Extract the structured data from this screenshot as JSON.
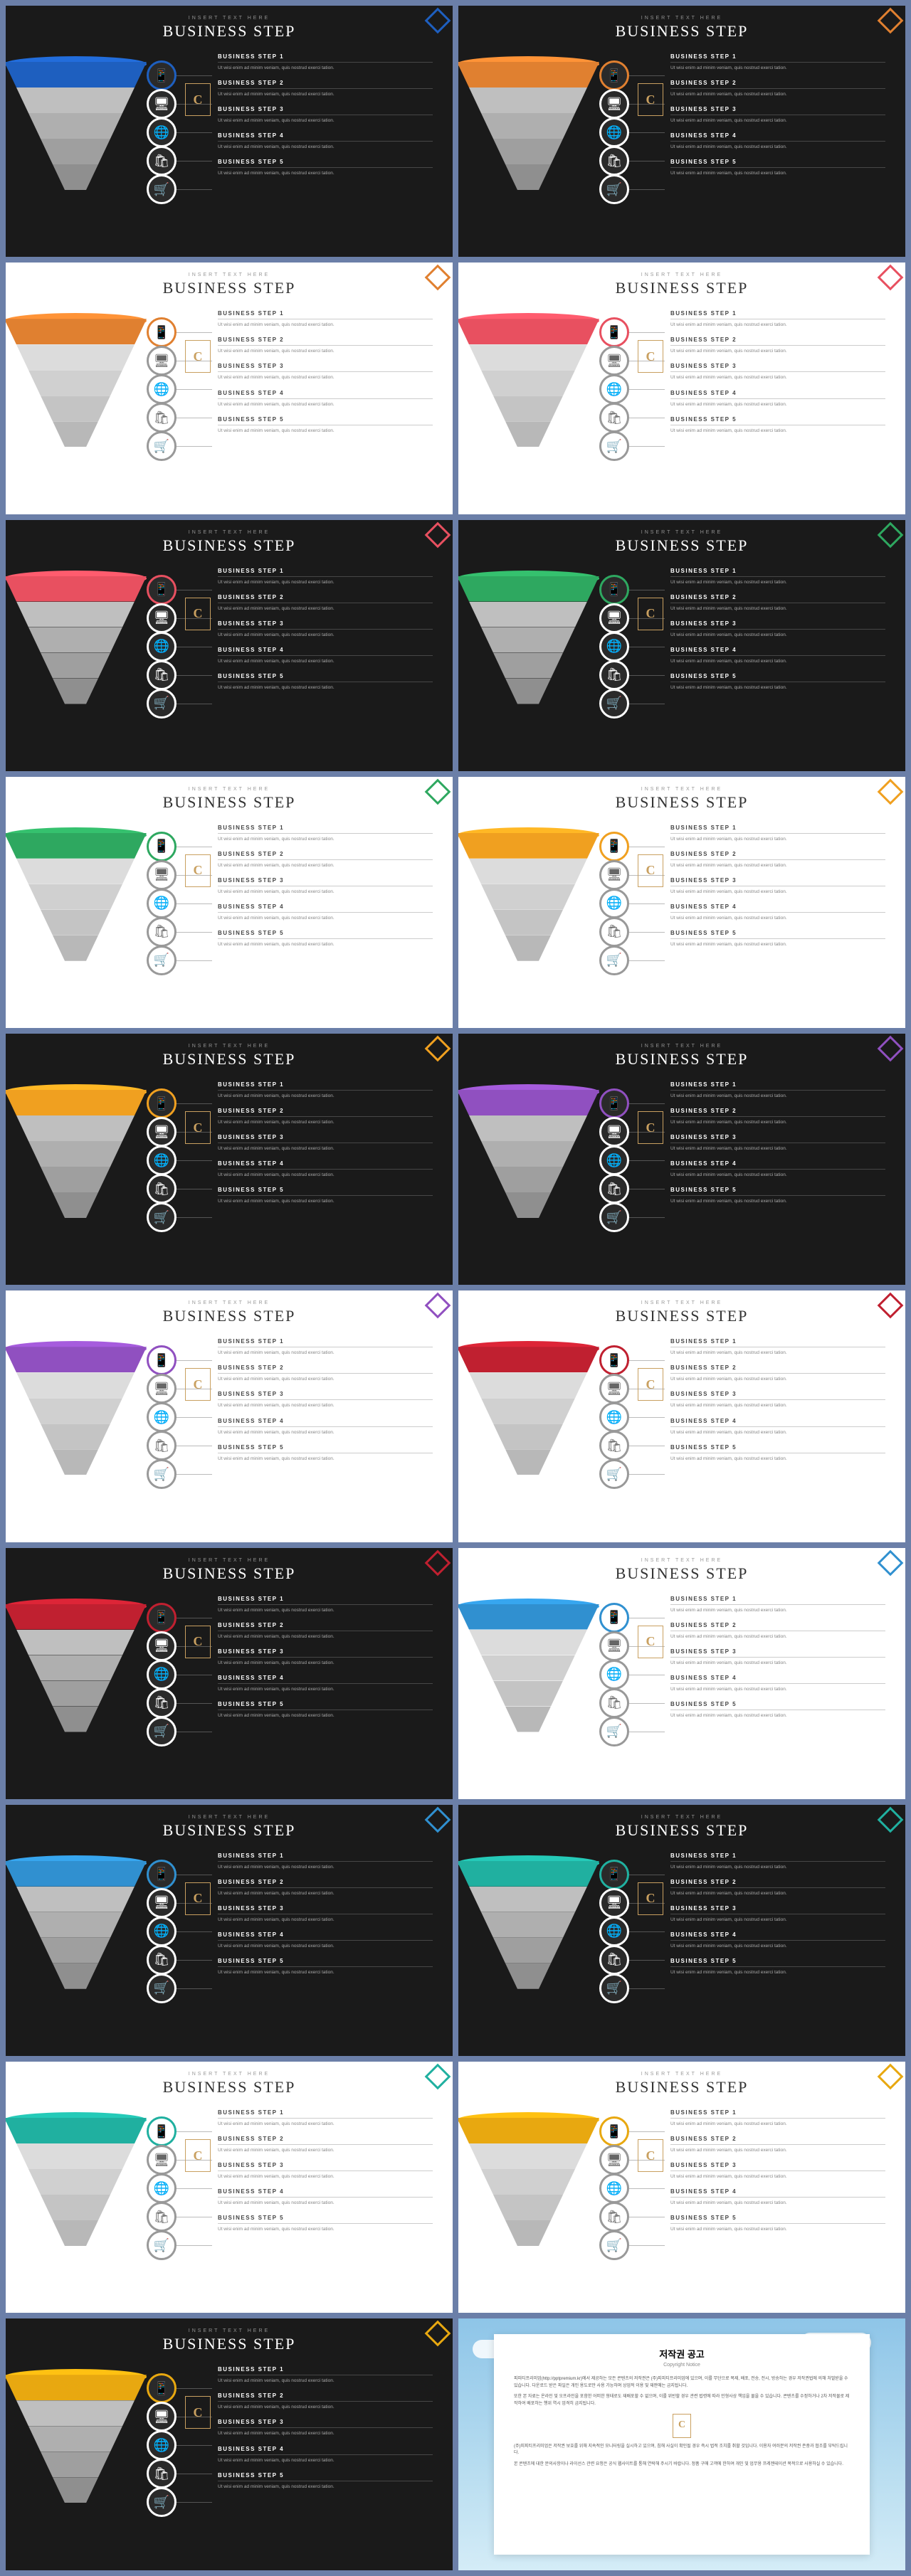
{
  "pretitle": "INSERT TEXT HERE",
  "title": "BUSINESS STEP",
  "step_label": "BUSINESS STEP",
  "step_desc": "Ut wisi enim ad minim veniam, quis nostrud exerci tation.",
  "logo_letter": "C",
  "icons": [
    "📱",
    "🖥",
    "🌐",
    "🛍",
    "🛒"
  ],
  "cone_grays": [
    "#cfcfcf",
    "#bfbfbf",
    "#afafaf",
    "#9f9f9f",
    "#8f8f8f"
  ],
  "cone_grays_light": [
    "#e8e8e8",
    "#dcdcdc",
    "#d0d0d0",
    "#c4c4c4",
    "#b8b8b8"
  ],
  "slides": [
    {
      "theme": "dark",
      "accent": "#1e5fbf"
    },
    {
      "theme": "dark",
      "accent": "#e08030"
    },
    {
      "theme": "light",
      "accent": "#e08030"
    },
    {
      "theme": "light",
      "accent": "#e85060"
    },
    {
      "theme": "dark",
      "accent": "#e85060"
    },
    {
      "theme": "dark",
      "accent": "#2ea860"
    },
    {
      "theme": "light",
      "accent": "#2ea860"
    },
    {
      "theme": "light",
      "accent": "#f0a020"
    },
    {
      "theme": "dark",
      "accent": "#f0a020"
    },
    {
      "theme": "dark",
      "accent": "#9050c0"
    },
    {
      "theme": "light",
      "accent": "#9050c0"
    },
    {
      "theme": "light",
      "accent": "#c02030"
    },
    {
      "theme": "dark",
      "accent": "#c02030"
    },
    {
      "theme": "light",
      "accent": "#3090d0"
    },
    {
      "theme": "dark",
      "accent": "#3090d0"
    },
    {
      "theme": "dark",
      "accent": "#20b0a0"
    },
    {
      "theme": "light",
      "accent": "#20b0a0"
    },
    {
      "theme": "light",
      "accent": "#e8a810"
    },
    {
      "theme": "dark",
      "accent": "#e8a810"
    }
  ],
  "copyright": {
    "title": "저작권 공고",
    "subtitle": "Copyright Notice",
    "paragraphs": [
      "피피티프리미엄(http://pptpremium.kr)에서 제공하는 모든 콘텐츠의 저작권은 (주)피피티프리미엄에 있으며, 이를 무단으로 복제, 배포, 전송, 전시, 방송하는 경우 저작권법에 의해 처벌받을 수 있습니다. 다운로드 받은 파일은 개인 용도로만 사용 가능하며 상업적 이용 및 재판매는 금지됩니다.",
      "또한 본 자료는 온라인 및 오프라인을 포함한 어떠한 형태로도 재배포할 수 없으며, 이를 위반할 경우 관련 법령에 따라 민형사상 책임을 물을 수 있습니다. 콘텐츠를 수정하거나 2차 저작물로 제작하여 배포하는 행위 역시 엄격히 금지됩니다.",
      "(주)피피티프리미엄은 저작권 보호를 위해 지속적인 모니터링을 실시하고 있으며, 침해 사실이 확인될 경우 즉시 법적 조치를 취할 것입니다. 이용자 여러분의 저작권 존중과 협조를 부탁드립니다.",
      "본 콘텐츠에 대한 문의사항이나 라이선스 관련 요청은 공식 웹사이트를 통해 연락해 주시기 바랍니다. 정품 구매 고객에 한하여 개인 및 업무용 프레젠테이션 목적으로 사용하실 수 있습니다."
    ]
  }
}
